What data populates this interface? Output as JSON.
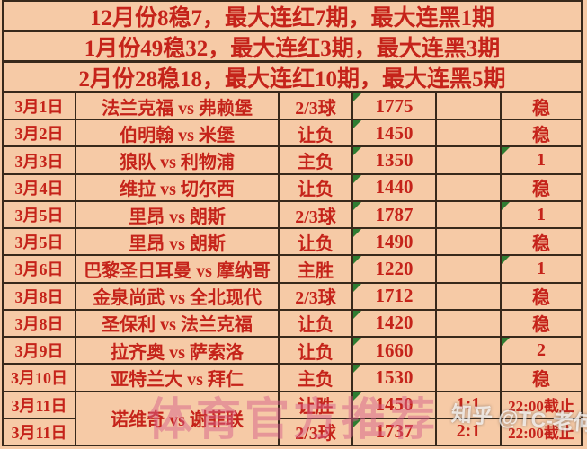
{
  "colors": {
    "background": "#f6caa6",
    "text": "#c5231a",
    "border": "#38291b",
    "corner_flag": "#2e7d32",
    "promo_watermark": "#d55f8a",
    "zhihu_watermark": "#ffffff"
  },
  "header_rows": [
    "12月份8稳7，最大连红7期，最大连黑1期",
    "1月份49稳32，最大连红3期，最大连黑3期",
    "2月份28稳18，最大连红10期，最大连黑5期"
  ],
  "table": {
    "rows": [
      {
        "date": "3月1日",
        "match": "法兰克福 vs 弗赖堡",
        "bet": "2/3球",
        "odds": "1775",
        "result": "",
        "status": "稳",
        "odds_corner": true,
        "status_corner": false
      },
      {
        "date": "3月2日",
        "match": "伯明翰 vs 米堡",
        "bet": "让负",
        "odds": "1450",
        "result": "",
        "status": "稳",
        "odds_corner": true,
        "status_corner": false
      },
      {
        "date": "3月3日",
        "match": "狼队 vs 利物浦",
        "bet": "主负",
        "odds": "1350",
        "result": "",
        "status": "1",
        "odds_corner": true,
        "status_corner": true
      },
      {
        "date": "3月4日",
        "match": "维拉 vs 切尔西",
        "bet": "让负",
        "odds": "1440",
        "result": "",
        "status": "稳",
        "odds_corner": true,
        "status_corner": false
      },
      {
        "date": "3月5日",
        "match": "里昂 vs 朗斯",
        "bet": "2/3球",
        "odds": "1787",
        "result": "",
        "status": "1",
        "odds_corner": true,
        "status_corner": true
      },
      {
        "date": "3月5日",
        "match": "里昂 vs 朗斯",
        "bet": "让负",
        "odds": "1490",
        "result": "",
        "status": "稳",
        "odds_corner": true,
        "status_corner": false
      },
      {
        "date": "3月6日",
        "match": "巴黎圣日耳曼 vs 摩纳哥",
        "bet": "主胜",
        "odds": "1220",
        "result": "",
        "status": "1",
        "odds_corner": true,
        "status_corner": true
      },
      {
        "date": "3月8日",
        "match": "金泉尚武 vs 全北现代",
        "bet": "2/3球",
        "odds": "1712",
        "result": "",
        "status": "稳",
        "odds_corner": true,
        "status_corner": false
      },
      {
        "date": "3月8日",
        "match": "圣保利 vs 法兰克福",
        "bet": "让负",
        "odds": "1420",
        "result": "",
        "status": "稳",
        "odds_corner": true,
        "status_corner": false
      },
      {
        "date": "3月9日",
        "match": "拉齐奥 vs 萨索洛",
        "bet": "让负",
        "odds": "1660",
        "result": "",
        "status": "2",
        "odds_corner": true,
        "status_corner": true
      },
      {
        "date": "3月10日",
        "match": "亚特兰大 vs 拜仁",
        "bet": "主负",
        "odds": "1530",
        "result": "",
        "status": "稳",
        "odds_corner": true,
        "status_corner": false
      },
      {
        "date": "3月11日",
        "match": "诺维奇 vs 谢菲联",
        "match_rowspan": 2,
        "bet": "让胜",
        "odds": "1450",
        "result": "1:1",
        "status": "22:00截止",
        "odds_corner": true,
        "status_corner": false
      },
      {
        "date": "3月11日",
        "match": null,
        "bet": "2/3球",
        "odds": "1737",
        "result": "2:1",
        "status": "22:00截止",
        "odds_corner": true,
        "status_corner": false
      }
    ]
  },
  "watermarks": {
    "promo": "体育官方推荐",
    "zhihu": "知乎 @TC-老何"
  }
}
